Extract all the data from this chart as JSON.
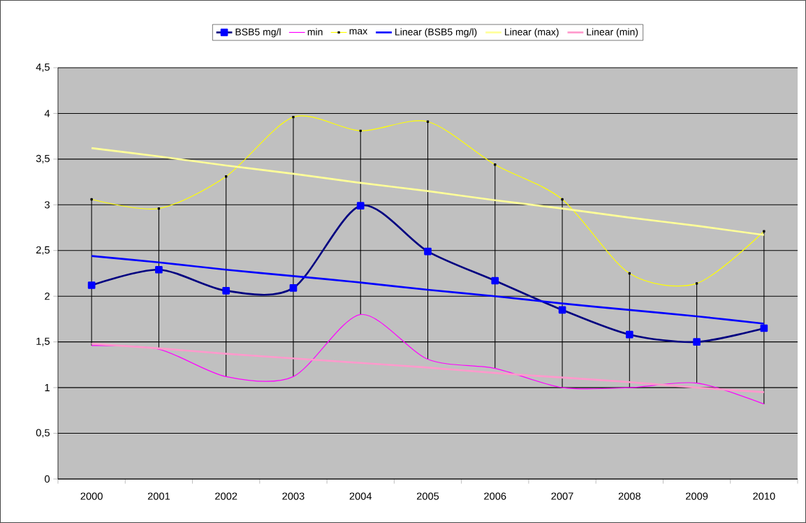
{
  "chart_data": {
    "type": "line",
    "categories": [
      "2000",
      "2001",
      "2002",
      "2003",
      "2004",
      "2005",
      "2006",
      "2007",
      "2008",
      "2009",
      "2010"
    ],
    "ylim": [
      0,
      4.5
    ],
    "yticks": [
      0,
      {
        "value": 0.5,
        "label": "0,5"
      },
      1,
      {
        "value": 1.5,
        "label": "1,5"
      },
      2,
      {
        "value": 2.5,
        "label": "2,5"
      },
      3,
      {
        "value": 3.5,
        "label": "3,5"
      },
      4,
      {
        "value": 4.5,
        "label": "4,5"
      }
    ],
    "grid": "y",
    "legend": "top",
    "series": [
      {
        "name": "BSB5 mg/l",
        "color": "#000080",
        "marker": "square",
        "values": [
          2.12,
          2.29,
          2.06,
          2.09,
          2.99,
          2.49,
          2.17,
          1.85,
          1.58,
          1.5,
          1.65
        ],
        "errors": [
          [
            1.46,
            3.06
          ],
          [
            1.42,
            2.96
          ],
          [
            1.12,
            3.31
          ],
          [
            1.12,
            3.96
          ],
          [
            1.8,
            3.81
          ],
          [
            1.31,
            3.91
          ],
          [
            1.21,
            3.44
          ],
          [
            1.0,
            3.06
          ],
          [
            1.0,
            2.25
          ],
          [
            1.05,
            2.14
          ],
          [
            0.82,
            2.71
          ]
        ]
      },
      {
        "name": "min",
        "color": "#ff00ff",
        "marker": "none",
        "values": [
          1.46,
          1.42,
          1.12,
          1.12,
          1.8,
          1.31,
          1.21,
          1.0,
          1.0,
          1.05,
          0.82
        ]
      },
      {
        "name": "max",
        "color": "#ffff00",
        "marker": "square",
        "values": [
          3.06,
          2.96,
          3.31,
          3.96,
          3.81,
          3.91,
          3.44,
          3.06,
          2.25,
          2.14,
          2.71
        ]
      },
      {
        "name": "Linear (BSB5 mg/l)",
        "type": "line",
        "color": "#0000ff",
        "marker": "none",
        "values": [
          2.44,
          2.37,
          2.29,
          2.22,
          2.15,
          2.07,
          2.0,
          1.92,
          1.85,
          1.78,
          1.7
        ]
      },
      {
        "name": "Linear (max)",
        "type": "line",
        "color": "#ffff99",
        "marker": "none",
        "values": [
          3.62,
          3.53,
          3.43,
          3.34,
          3.24,
          3.15,
          3.05,
          2.96,
          2.86,
          2.77,
          2.67
        ]
      },
      {
        "name": "Linear (min)",
        "type": "line",
        "color": "#ff99cc",
        "marker": "none",
        "values": [
          1.48,
          1.43,
          1.37,
          1.32,
          1.27,
          1.22,
          1.16,
          1.11,
          1.06,
          1.0,
          0.95
        ]
      }
    ]
  }
}
